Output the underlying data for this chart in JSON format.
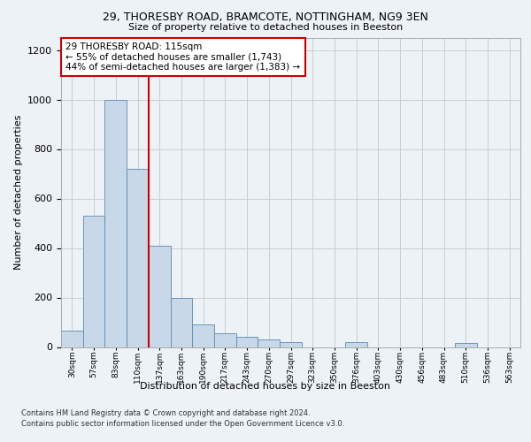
{
  "title1": "29, THORESBY ROAD, BRAMCOTE, NOTTINGHAM, NG9 3EN",
  "title2": "Size of property relative to detached houses in Beeston",
  "xlabel": "Distribution of detached houses by size in Beeston",
  "ylabel": "Number of detached properties",
  "footer1": "Contains HM Land Registry data © Crown copyright and database right 2024.",
  "footer2": "Contains public sector information licensed under the Open Government Licence v3.0.",
  "annotation_line1": "29 THORESBY ROAD: 115sqm",
  "annotation_line2": "← 55% of detached houses are smaller (1,743)",
  "annotation_line3": "44% of semi-detached houses are larger (1,383) →",
  "bar_labels": [
    "30sqm",
    "57sqm",
    "83sqm",
    "110sqm",
    "137sqm",
    "163sqm",
    "190sqm",
    "217sqm",
    "243sqm",
    "270sqm",
    "297sqm",
    "323sqm",
    "350sqm",
    "376sqm",
    "403sqm",
    "430sqm",
    "456sqm",
    "483sqm",
    "510sqm",
    "536sqm",
    "563sqm"
  ],
  "bar_values": [
    65,
    530,
    1000,
    720,
    410,
    200,
    90,
    55,
    40,
    30,
    20,
    0,
    0,
    20,
    0,
    0,
    0,
    0,
    15,
    0,
    0
  ],
  "bar_color": "#c8d8e8",
  "bar_edge_color": "#5a8ab0",
  "red_line_x": 3.5,
  "red_line_color": "#cc0000",
  "annotation_box_edge": "#cc0000",
  "ylim": [
    0,
    1250
  ],
  "yticks": [
    0,
    200,
    400,
    600,
    800,
    1000,
    1200
  ],
  "grid_color": "#cccccc",
  "background_color": "#edf2f7"
}
